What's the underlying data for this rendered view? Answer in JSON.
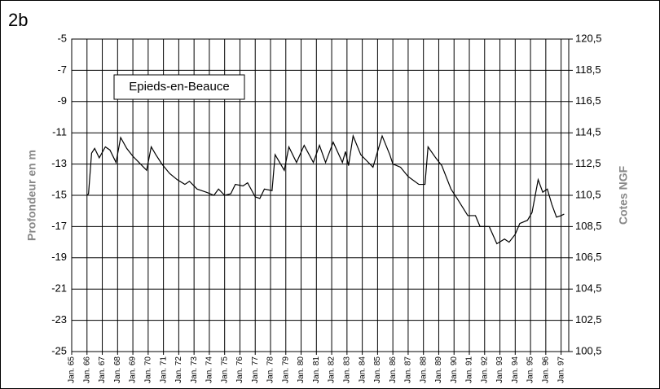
{
  "chart_data": {
    "type": "line",
    "panel_label": "2b",
    "annotation": "Epieds-en-Beauce",
    "ylabel": "Profondeur en m",
    "y2label": "Cotes NGF",
    "color": "#000000",
    "grid": true,
    "xlim": [
      1965,
      1997.5
    ],
    "xticks": [
      {
        "value": 1965,
        "label": "Jan. 65"
      },
      {
        "value": 1966,
        "label": "Jan. 66"
      },
      {
        "value": 1967,
        "label": "Jan. 67"
      },
      {
        "value": 1968,
        "label": "Jan. 68"
      },
      {
        "value": 1969,
        "label": "Jan. 69"
      },
      {
        "value": 1970,
        "label": "Jan. 70"
      },
      {
        "value": 1971,
        "label": "Jan. 71"
      },
      {
        "value": 1972,
        "label": "Jan. 72"
      },
      {
        "value": 1973,
        "label": "Jan. 73"
      },
      {
        "value": 1974,
        "label": "Jan. 74"
      },
      {
        "value": 1975,
        "label": "Jan. 75"
      },
      {
        "value": 1976,
        "label": "Jan. 76"
      },
      {
        "value": 1977,
        "label": "Jan. 77"
      },
      {
        "value": 1978,
        "label": "Jan. 78"
      },
      {
        "value": 1979,
        "label": "Jan. 79"
      },
      {
        "value": 1980,
        "label": "Jan. 80"
      },
      {
        "value": 1981,
        "label": "Jan. 81"
      },
      {
        "value": 1982,
        "label": "Jan. 82"
      },
      {
        "value": 1983,
        "label": "Jan. 83"
      },
      {
        "value": 1984,
        "label": "Jan. 84"
      },
      {
        "value": 1985,
        "label": "Jan. 85"
      },
      {
        "value": 1986,
        "label": "Jan. 86"
      },
      {
        "value": 1987,
        "label": "Jan. 87"
      },
      {
        "value": 1988,
        "label": "Jan. 88"
      },
      {
        "value": 1989,
        "label": "Jan. 89"
      },
      {
        "value": 1990,
        "label": "Jan. 90"
      },
      {
        "value": 1991,
        "label": "Jan. 91"
      },
      {
        "value": 1992,
        "label": "Jan. 92"
      },
      {
        "value": 1993,
        "label": "Jan. 93"
      },
      {
        "value": 1994,
        "label": "Jan. 94"
      },
      {
        "value": 1995,
        "label": "Jan. 95"
      },
      {
        "value": 1996,
        "label": "Jan. 96"
      },
      {
        "value": 1997,
        "label": "Jan. 97"
      }
    ],
    "ylim": [
      -25,
      -5
    ],
    "yticks": [
      -25,
      -23,
      -21,
      -19,
      -17,
      -15,
      -13,
      -11,
      -9,
      -7,
      -5
    ],
    "y2lim": [
      100.5,
      120.5
    ],
    "y2ticks": [
      {
        "value": 100.5,
        "label": "100,5"
      },
      {
        "value": 102.5,
        "label": "102,5"
      },
      {
        "value": 104.5,
        "label": "104,5"
      },
      {
        "value": 106.5,
        "label": "106,5"
      },
      {
        "value": 108.5,
        "label": "108,5"
      },
      {
        "value": 110.5,
        "label": "110,5"
      },
      {
        "value": 112.5,
        "label": "112,5"
      },
      {
        "value": 114.5,
        "label": "114,5"
      },
      {
        "value": 116.5,
        "label": "116,5"
      },
      {
        "value": 118.5,
        "label": "118,5"
      },
      {
        "value": 120.5,
        "label": "120,5"
      }
    ],
    "x": [
      1966.0,
      1966.1,
      1966.3,
      1966.5,
      1966.8,
      1967.2,
      1967.5,
      1967.9,
      1968.2,
      1968.6,
      1969.0,
      1969.5,
      1969.9,
      1970.2,
      1970.5,
      1970.9,
      1971.4,
      1971.9,
      1972.4,
      1972.7,
      1973.2,
      1973.8,
      1974.3,
      1974.6,
      1975.0,
      1975.4,
      1975.7,
      1976.2,
      1976.5,
      1977.0,
      1977.3,
      1977.6,
      1978.1,
      1978.3,
      1978.9,
      1979.2,
      1979.7,
      1980.2,
      1980.8,
      1981.2,
      1981.6,
      1982.1,
      1982.7,
      1982.9,
      1983.1,
      1983.4,
      1983.9,
      1984.3,
      1984.7,
      1985.3,
      1985.8,
      1986.0,
      1986.5,
      1987.0,
      1987.7,
      1988.1,
      1988.3,
      1988.8,
      1989.2,
      1989.8,
      1990.2,
      1990.9,
      1991.4,
      1991.7,
      1992.3,
      1992.8,
      1993.3,
      1993.6,
      1994.0,
      1994.3,
      1994.8,
      1995.1,
      1995.5,
      1995.8,
      1996.1,
      1996.4,
      1996.7,
      1997.0,
      1997.2
    ],
    "values": [
      -15.0,
      -14.9,
      -12.3,
      -12.0,
      -12.6,
      -11.9,
      -12.1,
      -12.9,
      -11.3,
      -12.0,
      -12.5,
      -13.0,
      -13.4,
      -11.9,
      -12.4,
      -13.0,
      -13.6,
      -14.0,
      -14.3,
      -14.1,
      -14.6,
      -14.8,
      -15.0,
      -14.6,
      -15.0,
      -14.9,
      -14.3,
      -14.4,
      -14.2,
      -15.1,
      -15.2,
      -14.6,
      -14.7,
      -12.4,
      -13.4,
      -11.9,
      -12.9,
      -11.8,
      -12.9,
      -11.8,
      -12.9,
      -11.6,
      -12.9,
      -12.2,
      -13.1,
      -11.2,
      -12.4,
      -12.8,
      -13.2,
      -11.2,
      -12.4,
      -13.0,
      -13.2,
      -13.8,
      -14.3,
      -14.3,
      -11.9,
      -12.6,
      -13.1,
      -14.6,
      -15.2,
      -16.3,
      -16.3,
      -17.0,
      -17.0,
      -18.1,
      -17.8,
      -18.0,
      -17.5,
      -16.8,
      -16.6,
      -16.1,
      -14.0,
      -14.8,
      -14.6,
      -15.6,
      -16.4,
      -16.3,
      -16.2
    ]
  }
}
